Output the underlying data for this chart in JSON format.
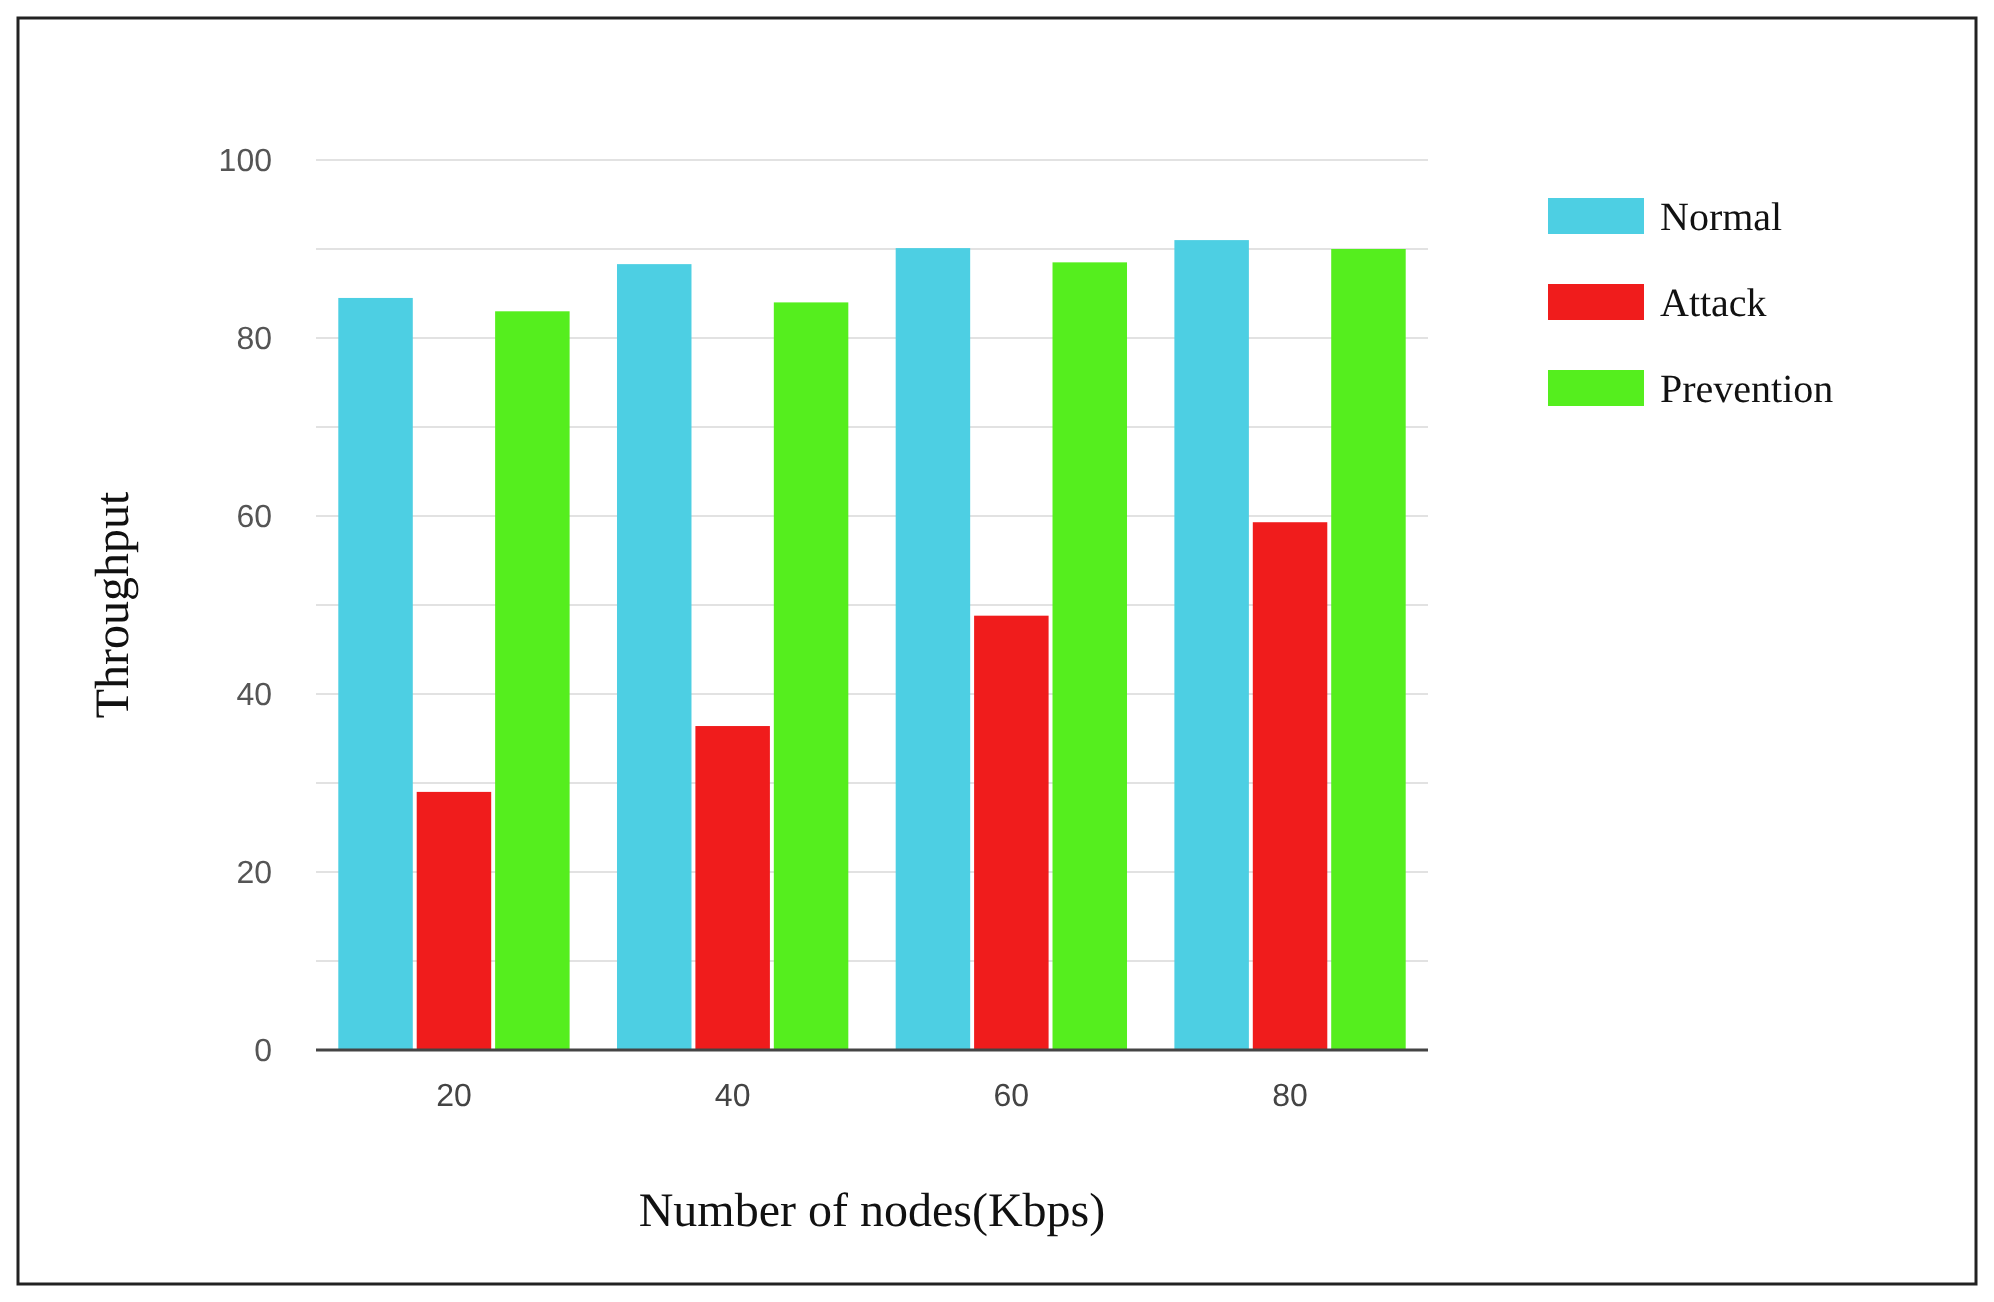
{
  "chart_data": {
    "type": "bar",
    "xlabel": "Number of nodes(Kbps)",
    "ylabel": "Throughput",
    "categories": [
      "20",
      "40",
      "60",
      "80"
    ],
    "series": [
      {
        "name": "Normal",
        "color": "#4dcfe3",
        "values": [
          84.5,
          88.3,
          90.1,
          91
        ]
      },
      {
        "name": "Attack",
        "color": "#f01c1c",
        "values": [
          29,
          36.4,
          48.8,
          59.3
        ]
      },
      {
        "name": "Prevention",
        "color": "#55ee1e",
        "values": [
          83,
          84,
          88.5,
          90
        ]
      }
    ],
    "ylim": [
      0,
      100
    ],
    "yticks": [
      0,
      {
        "value": 10,
        "label": null
      },
      20,
      {
        "value": 30,
        "label": null
      },
      40,
      {
        "value": 50,
        "label": null
      },
      60,
      {
        "value": 70,
        "label": null
      },
      80,
      {
        "value": 90,
        "label": null
      },
      100
    ],
    "grid": "y",
    "legend": "top right"
  }
}
